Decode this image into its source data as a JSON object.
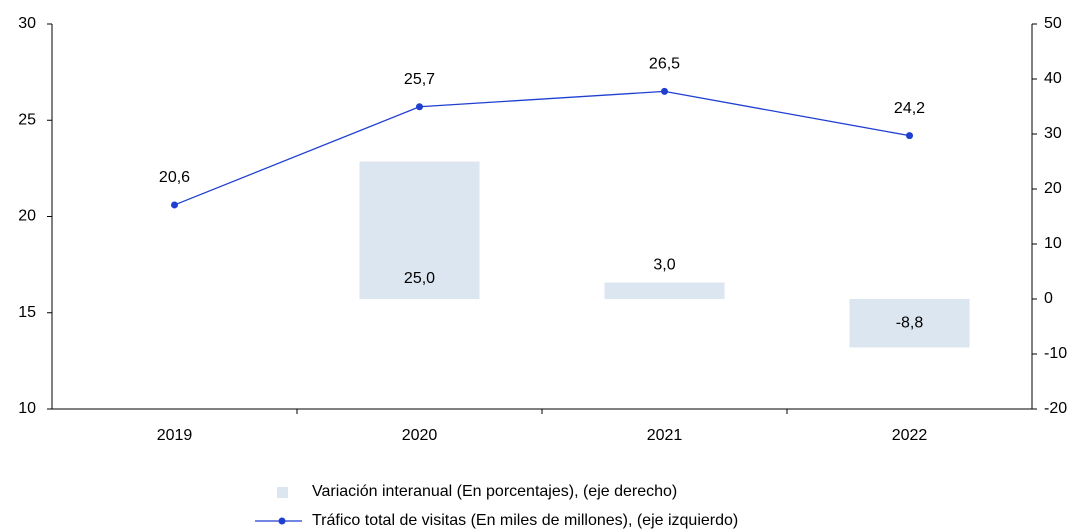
{
  "chart_data": {
    "type": "combo",
    "categories": [
      "2019",
      "2020",
      "2021",
      "2022"
    ],
    "series": [
      {
        "name": "Variación interanual (En porcentajes), (eje derecho)",
        "type": "bar",
        "axis": "y2",
        "color": "#dce6f1",
        "values": [
          null,
          25.0,
          3.0,
          -8.8
        ],
        "value_labels": [
          null,
          "25,0",
          "3,0",
          "-8,8"
        ]
      },
      {
        "name": "Tráfico total de visitas (En miles de millones), (eje izquierdo)",
        "type": "line",
        "axis": "y",
        "color": "#1f3fd1",
        "values": [
          20.6,
          25.7,
          26.5,
          24.2
        ],
        "value_labels": [
          "20,6",
          "25,7",
          "26,5",
          "24,2"
        ]
      }
    ],
    "ylim": [
      10,
      30
    ],
    "yticks": [
      10,
      15,
      20,
      25,
      30
    ],
    "y2lim": [
      -20,
      50
    ],
    "y2ticks": [
      -20,
      -10,
      0,
      10,
      20,
      30,
      40,
      50
    ],
    "grid": false
  }
}
